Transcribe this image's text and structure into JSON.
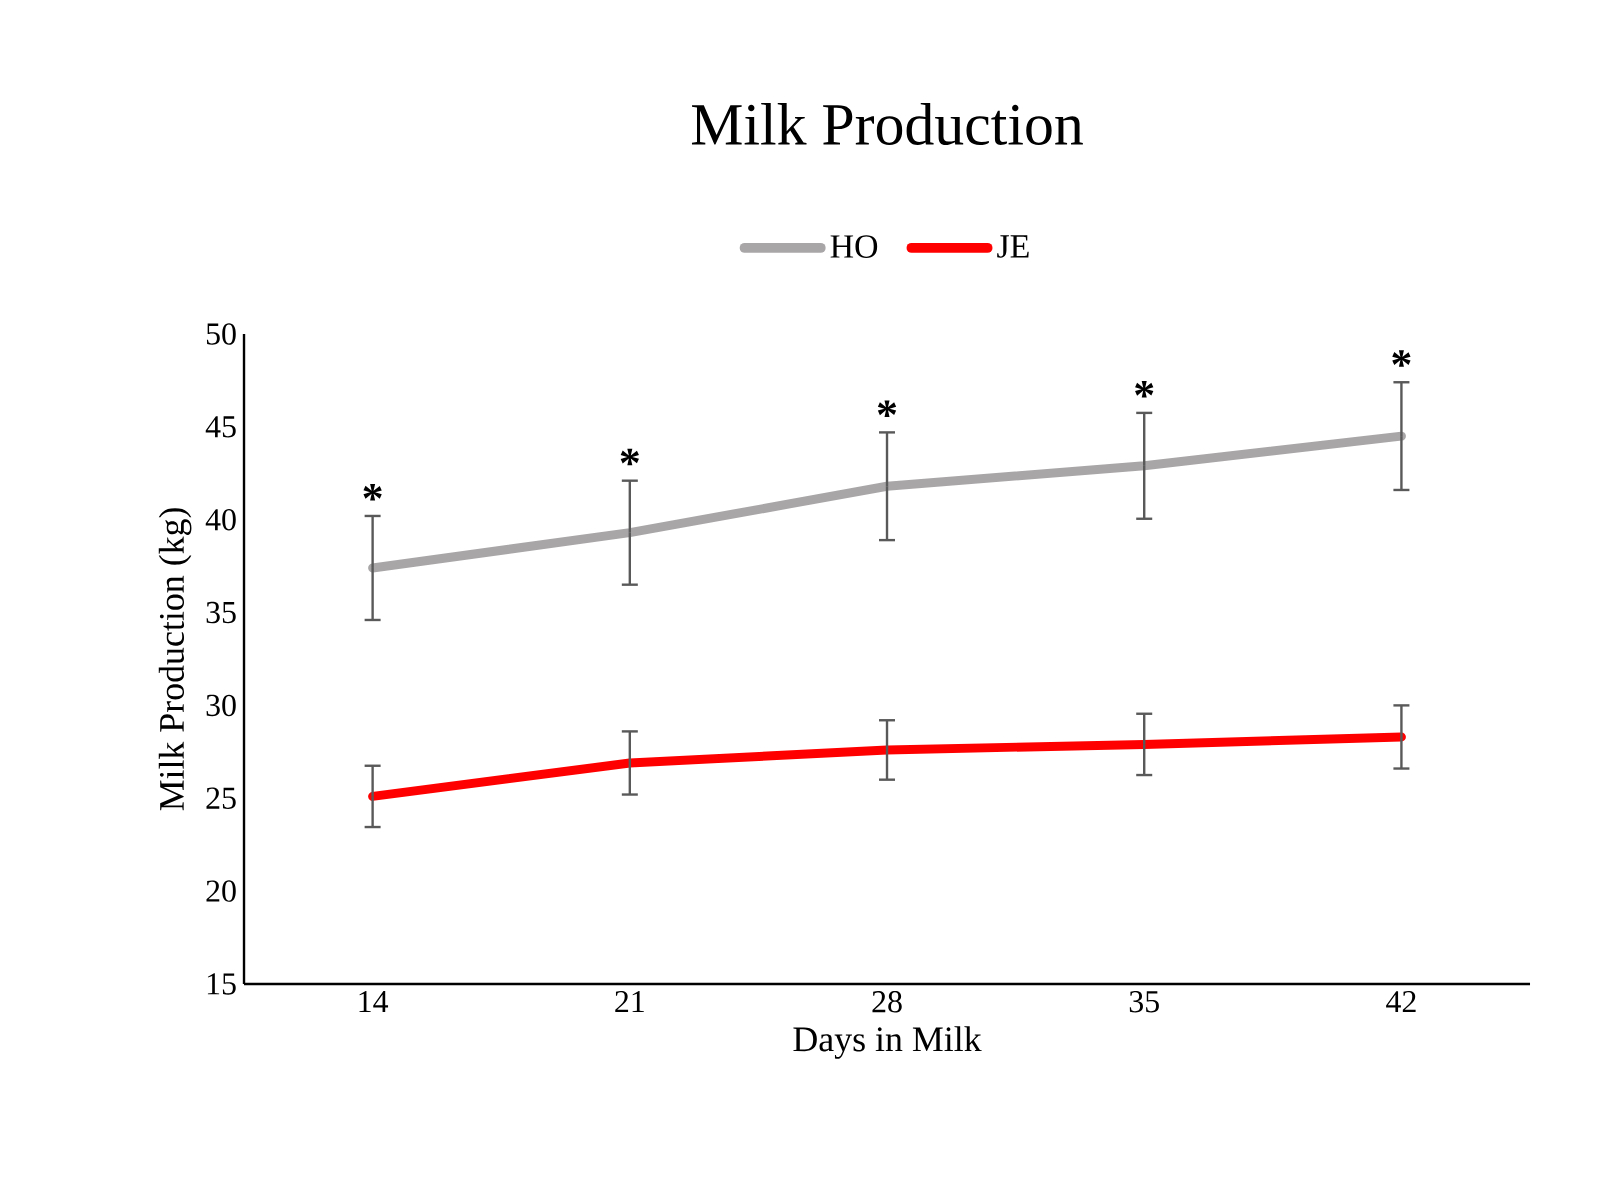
{
  "chart_data": {
    "type": "line",
    "title": "Milk Production",
    "xlabel": "Days in Milk",
    "ylabel": "Milk Production (kg)",
    "categories": [
      "14",
      "21",
      "28",
      "35",
      "42"
    ],
    "series": [
      {
        "name": "HO",
        "color": "#a9a6a8",
        "values": [
          37.4,
          39.3,
          41.8,
          42.9,
          44.5
        ],
        "errors": [
          2.8,
          2.8,
          2.9,
          2.85,
          2.9
        ]
      },
      {
        "name": "JE",
        "color": "#ff0000",
        "values": [
          25.1,
          26.9,
          27.6,
          27.9,
          28.3
        ],
        "errors": [
          1.65,
          1.7,
          1.6,
          1.65,
          1.7
        ]
      }
    ],
    "ylim": [
      15,
      50
    ],
    "yticks": [
      15,
      20,
      25,
      30,
      35,
      40,
      45,
      50
    ],
    "grid": false,
    "legend": "top",
    "marker": "none",
    "line_style": "solid",
    "annotations": [
      "*",
      "*",
      "*",
      "*",
      "*"
    ]
  }
}
